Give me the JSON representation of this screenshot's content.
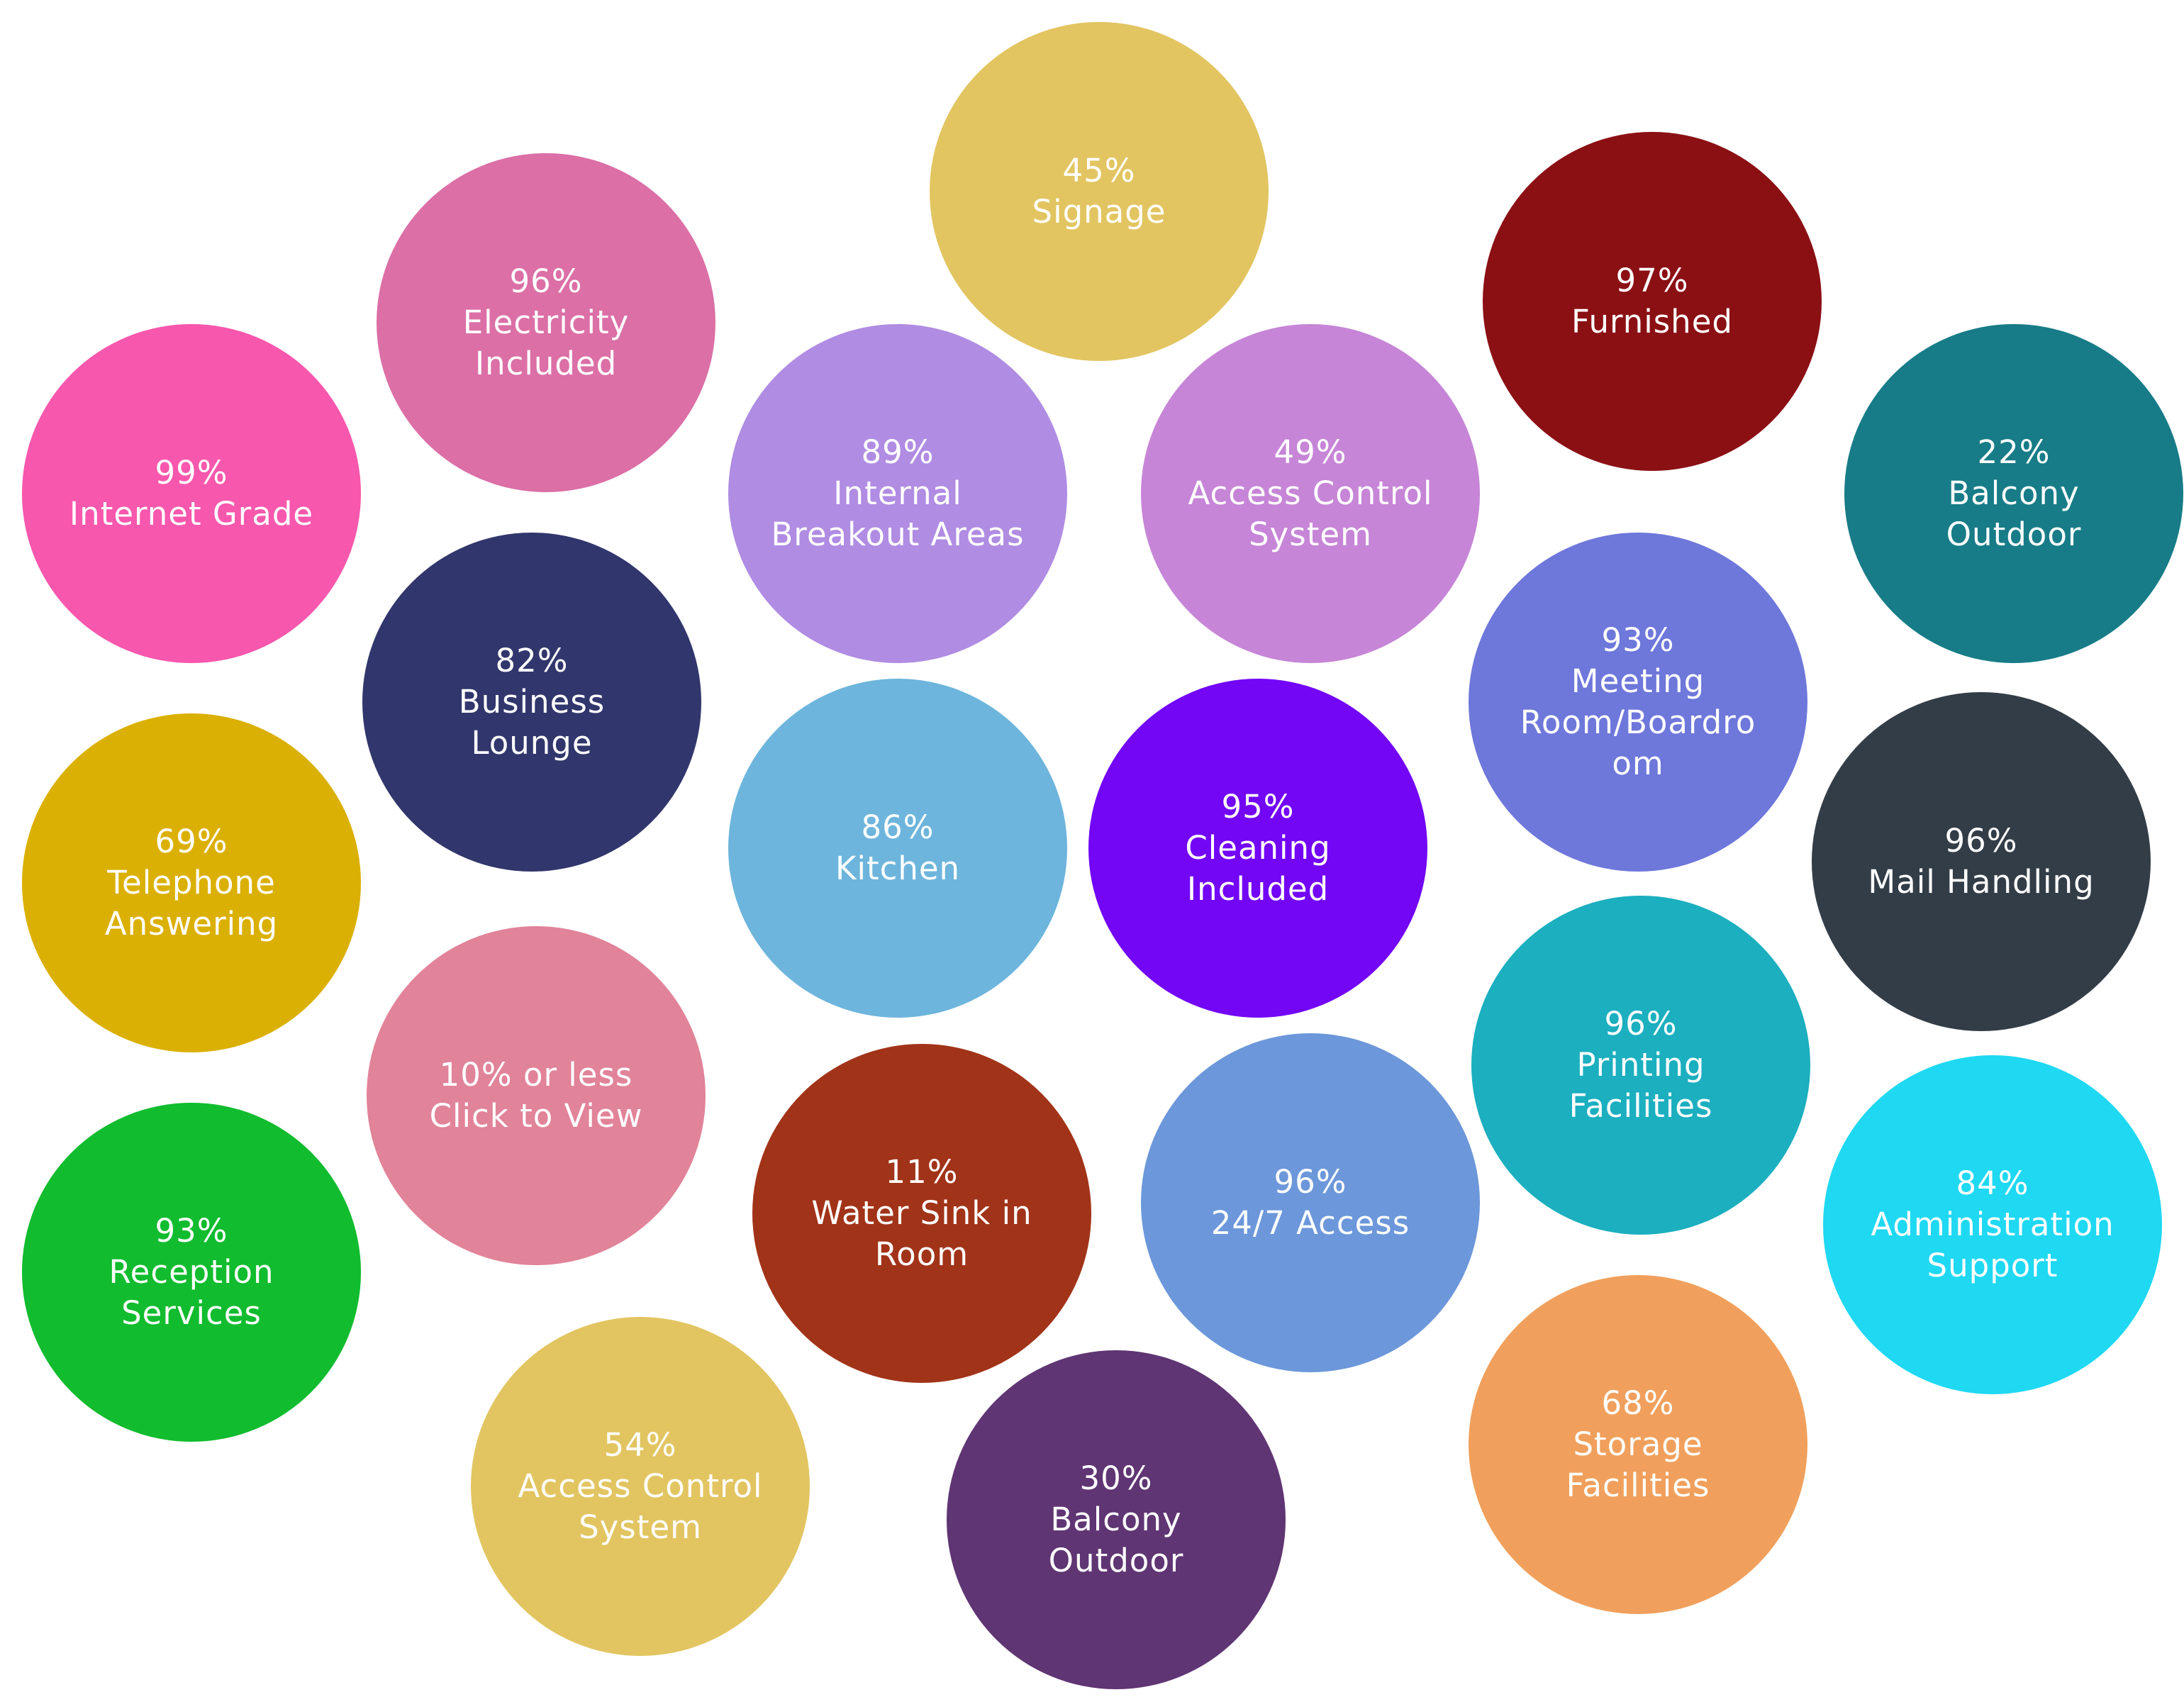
{
  "bubbles": [
    {
      "id": "signage-45",
      "lines": [
        "45%",
        "Signage"
      ],
      "color": "#E2C561"
    },
    {
      "id": "electricity-96",
      "lines": [
        "96%",
        "Electricity",
        "Included"
      ],
      "color": "#DB6FA6"
    },
    {
      "id": "furnished-97",
      "lines": [
        "97%",
        "Furnished"
      ],
      "color": "#8B1014"
    },
    {
      "id": "internet-99",
      "lines": [
        "99%",
        "Internet Grade"
      ],
      "color": "#F757AD"
    },
    {
      "id": "breakout-89",
      "lines": [
        "89%",
        "Internal",
        "Breakout Areas"
      ],
      "color": "#B08CE3"
    },
    {
      "id": "access-control-49",
      "lines": [
        "49%",
        "Access Control",
        "System"
      ],
      "color": "#C685D7"
    },
    {
      "id": "balcony-22",
      "lines": [
        "22%",
        "Balcony",
        "Outdoor"
      ],
      "color": "#177C87"
    },
    {
      "id": "business-lounge-82",
      "lines": [
        "82%",
        "Business",
        "Lounge"
      ],
      "color": "#31366C"
    },
    {
      "id": "meeting-room-93",
      "lines": [
        "93%",
        "Meeting",
        "Room/Boardro",
        "om"
      ],
      "color": "#6E77DA"
    },
    {
      "id": "telephone-69",
      "lines": [
        "69%",
        "Telephone",
        "Answering"
      ],
      "color": "#DBB005"
    },
    {
      "id": "kitchen-86",
      "lines": [
        "86%",
        "Kitchen"
      ],
      "color": "#6DB5DC"
    },
    {
      "id": "cleaning-95",
      "lines": [
        "95%",
        "Cleaning",
        "Included"
      ],
      "color": "#7206F5"
    },
    {
      "id": "mail-96",
      "lines": [
        "96%",
        "Mail Handling"
      ],
      "color": "#333D47"
    },
    {
      "id": "click-view-10",
      "lines": [
        "10% or less",
        "Click to View"
      ],
      "color": "#E18399"
    },
    {
      "id": "printing-96",
      "lines": [
        "96%",
        "Printing",
        "Facilities"
      ],
      "color": "#1BAFBF"
    },
    {
      "id": "water-sink-11",
      "lines": [
        "11%",
        "Water Sink in",
        "Room"
      ],
      "color": "#A13318"
    },
    {
      "id": "access-247-96",
      "lines": [
        "96%",
        "24/7 Access"
      ],
      "color": "#6C97DA"
    },
    {
      "id": "admin-support-84",
      "lines": [
        "84%",
        "Administration",
        "Support"
      ],
      "color": "#1FD8F2"
    },
    {
      "id": "reception-93",
      "lines": [
        "93%",
        "Reception",
        "Services"
      ],
      "color": "#11BC2E"
    },
    {
      "id": "access-control-54",
      "lines": [
        "54%",
        "Access Control",
        "System"
      ],
      "color": "#E2C561"
    },
    {
      "id": "storage-68",
      "lines": [
        "68%",
        "Storage",
        "Facilities"
      ],
      "color": "#F0A05C"
    },
    {
      "id": "balcony-30",
      "lines": [
        "30%",
        "Balcony",
        "Outdoor"
      ],
      "color": "#5F3573"
    }
  ]
}
